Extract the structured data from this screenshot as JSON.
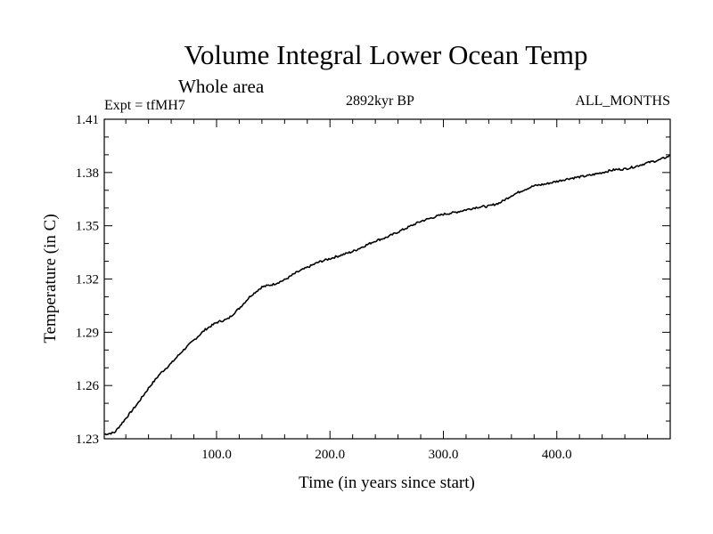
{
  "chart_data": {
    "type": "line",
    "title": "Volume Integral Lower Ocean Temp",
    "subtitle": "Whole area",
    "expt_label": "Expt = tfMH7",
    "period_label": "2892kyr BP",
    "months_label": "ALL_MONTHS",
    "xlabel": "Time (in years since start)",
    "ylabel": "Temperature (in C)",
    "xlim": [
      1,
      500
    ],
    "ylim": [
      1.23,
      1.41
    ],
    "x_ticks": [
      {
        "value": 100,
        "label": "100.0"
      },
      {
        "value": 200,
        "label": "200.0"
      },
      {
        "value": 300,
        "label": "300.0"
      },
      {
        "value": 400,
        "label": "400.0"
      }
    ],
    "y_ticks": [
      {
        "value": 1.23,
        "label": "1.23"
      },
      {
        "value": 1.26,
        "label": "1.26"
      },
      {
        "value": 1.29,
        "label": "1.29"
      },
      {
        "value": 1.32,
        "label": "1.32"
      },
      {
        "value": 1.35,
        "label": "1.35"
      },
      {
        "value": 1.38,
        "label": "1.38"
      },
      {
        "value": 1.41,
        "label": "1.41"
      }
    ],
    "series": [
      {
        "name": "Temperature",
        "x": [
          1,
          10,
          20,
          30,
          40,
          50,
          60,
          70,
          80,
          90,
          100,
          110,
          120,
          130,
          140,
          150,
          160,
          170,
          180,
          190,
          200,
          210,
          220,
          230,
          240,
          250,
          260,
          270,
          280,
          290,
          300,
          310,
          320,
          330,
          340,
          350,
          360,
          370,
          380,
          390,
          400,
          410,
          420,
          430,
          440,
          450,
          460,
          470,
          480,
          490,
          500
        ],
        "values": [
          1.2325,
          1.2335,
          1.2415,
          1.2495,
          1.2585,
          1.2665,
          1.2725,
          1.2795,
          1.2855,
          1.2915,
          1.2955,
          1.2975,
          1.3035,
          1.3105,
          1.3155,
          1.317,
          1.3195,
          1.3235,
          1.3265,
          1.3295,
          1.3315,
          1.3335,
          1.3355,
          1.3385,
          1.3415,
          1.3435,
          1.3465,
          1.3495,
          1.3525,
          1.3545,
          1.3565,
          1.3575,
          1.359,
          1.3605,
          1.361,
          1.363,
          1.367,
          1.37,
          1.3725,
          1.3735,
          1.375,
          1.3765,
          1.3775,
          1.3785,
          1.38,
          1.3815,
          1.382,
          1.3835,
          1.3855,
          1.387,
          1.3895
        ]
      }
    ]
  }
}
